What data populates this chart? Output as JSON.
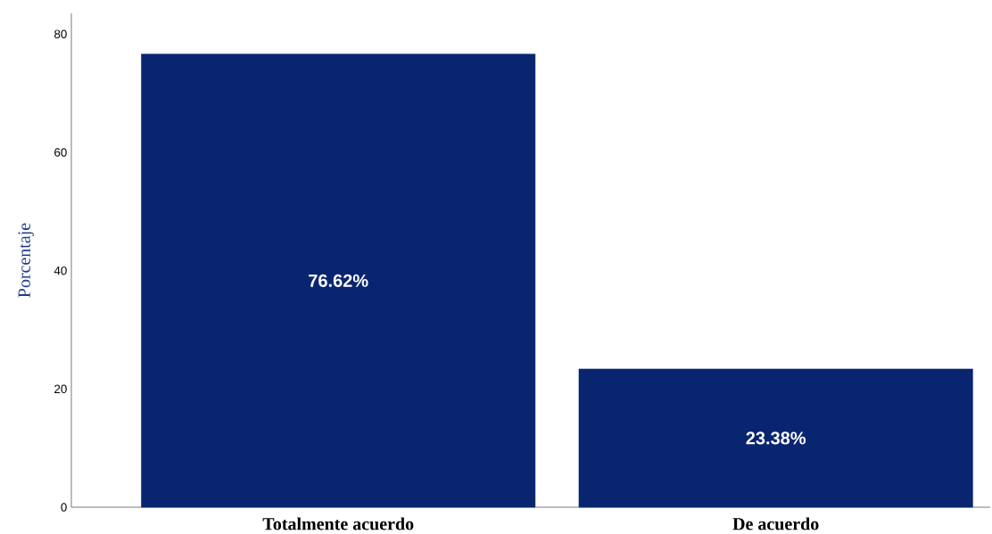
{
  "chart_data": {
    "type": "bar",
    "ylabel": "Porcentaje",
    "categories": [
      "Totalmente acuerdo",
      "De acuerdo"
    ],
    "values": [
      76.62,
      23.38
    ],
    "value_labels": [
      "76.62%",
      "23.38%"
    ],
    "color": "#0a2570",
    "ylim": [
      0,
      83.5
    ],
    "yticks": [
      0,
      20,
      40,
      60,
      80
    ]
  }
}
